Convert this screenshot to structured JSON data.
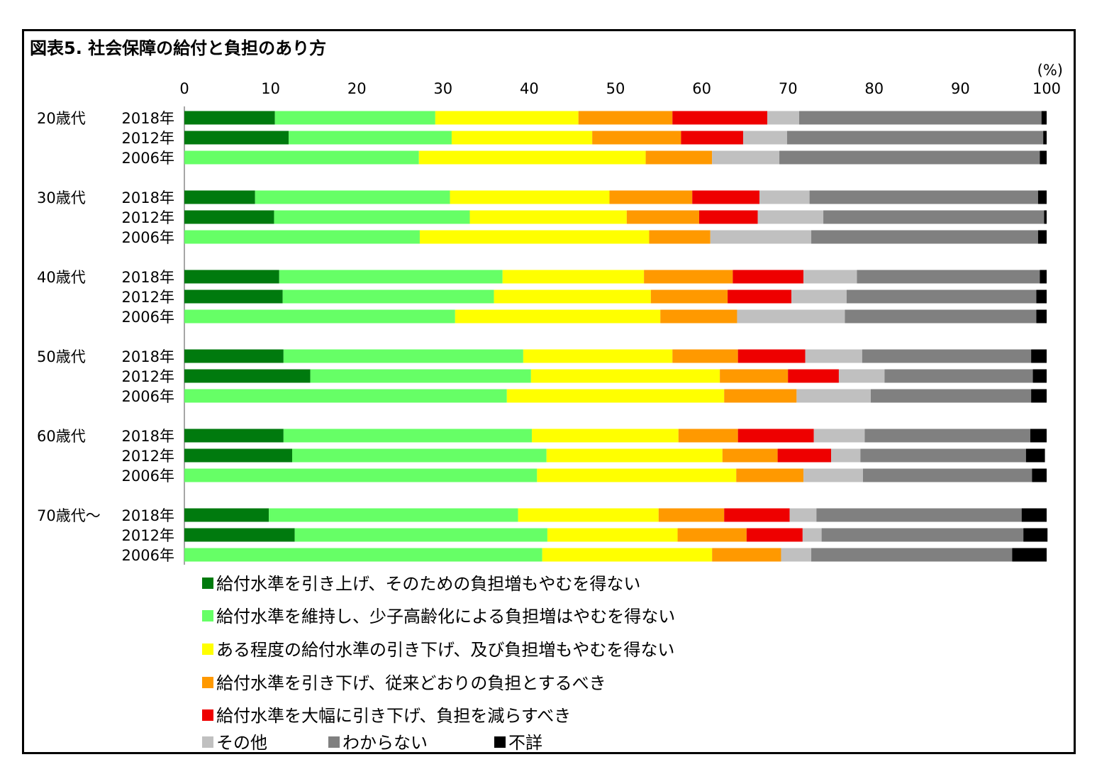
{
  "title": "図表5.  社会保障の給付と負担のあり方",
  "chart_data": {
    "type": "bar",
    "orientation": "horizontal",
    "stacked": true,
    "unit": "(%)",
    "xlim": [
      0,
      100
    ],
    "xticks": [
      0,
      10,
      20,
      30,
      40,
      50,
      60,
      70,
      80,
      90,
      100
    ],
    "grid": false,
    "legend_position": "bottom",
    "series": [
      {
        "name": "給付水準を引き上げ、そのための負担増もやむを得ない",
        "color": "#007a0e"
      },
      {
        "name": "給付水準を維持し、少子高齢化による負担増はやむを得ない",
        "color": "#66ff66"
      },
      {
        "name": "ある程度の給付水準の引き下げ、及び負担増もやむを得ない",
        "color": "#ffff00"
      },
      {
        "name": "給付水準を引き下げ、従来どおりの負担とするべき",
        "color": "#ff9900"
      },
      {
        "name": "給付水準を大幅に引き下げ、負担を減らすべき",
        "color": "#ee0000"
      },
      {
        "name": "その他",
        "color": "#c0c0c0"
      },
      {
        "name": "わからない",
        "color": "#808080"
      },
      {
        "name": "不詳",
        "color": "#000000"
      }
    ],
    "groups": [
      {
        "label": "20歳代",
        "rows": [
          {
            "year": "2018年",
            "values": [
              10.5,
              18.6,
              16.6,
              10.9,
              11.0,
              3.7,
              28.1,
              0.6
            ]
          },
          {
            "year": "2012年",
            "values": [
              12.1,
              18.9,
              16.3,
              10.3,
              7.2,
              5.1,
              29.7,
              0.4
            ]
          },
          {
            "year": "2006年",
            "values": [
              0,
              27.2,
              26.3,
              7.7,
              0,
              7.8,
              30.2,
              0.8
            ]
          }
        ]
      },
      {
        "label": "30歳代",
        "rows": [
          {
            "year": "2018年",
            "values": [
              8.2,
              22.6,
              18.5,
              9.6,
              7.8,
              5.8,
              26.5,
              1.0
            ]
          },
          {
            "year": "2012年",
            "values": [
              10.4,
              22.7,
              18.2,
              8.4,
              6.8,
              7.6,
              25.6,
              0.3
            ]
          },
          {
            "year": "2006年",
            "values": [
              0,
              27.3,
              26.6,
              7.1,
              0,
              11.7,
              26.3,
              1.0
            ]
          }
        ]
      },
      {
        "label": "40歳代",
        "rows": [
          {
            "year": "2018年",
            "values": [
              11.0,
              25.9,
              16.4,
              10.3,
              8.2,
              6.2,
              21.2,
              0.8
            ]
          },
          {
            "year": "2012年",
            "values": [
              11.4,
              24.5,
              18.2,
              8.9,
              7.4,
              6.4,
              22.0,
              1.2
            ]
          },
          {
            "year": "2006年",
            "values": [
              0,
              31.4,
              23.8,
              8.9,
              0,
              12.5,
              22.2,
              1.2
            ]
          }
        ]
      },
      {
        "label": "50歳代",
        "rows": [
          {
            "year": "2018年",
            "values": [
              11.5,
              27.8,
              17.3,
              7.6,
              7.8,
              6.6,
              19.6,
              1.8
            ]
          },
          {
            "year": "2012年",
            "values": [
              14.6,
              25.6,
              21.9,
              7.9,
              5.9,
              5.3,
              17.2,
              1.6
            ]
          },
          {
            "year": "2006年",
            "values": [
              0,
              37.4,
              25.2,
              8.4,
              0,
              8.6,
              18.6,
              1.8
            ]
          }
        ]
      },
      {
        "label": "60歳代",
        "rows": [
          {
            "year": "2018年",
            "values": [
              11.5,
              28.8,
              17.0,
              6.9,
              8.8,
              5.9,
              19.2,
              1.9
            ]
          },
          {
            "year": "2012年",
            "values": [
              12.5,
              29.5,
              20.4,
              6.4,
              6.2,
              3.4,
              19.2,
              2.2
            ]
          },
          {
            "year": "2006年",
            "values": [
              0,
              40.9,
              23.1,
              7.8,
              0,
              6.9,
              19.6,
              1.7
            ]
          }
        ]
      },
      {
        "label": "70歳代～",
        "rows": [
          {
            "year": "2018年",
            "values": [
              9.8,
              28.9,
              16.3,
              7.6,
              7.6,
              3.1,
              23.8,
              2.9
            ]
          },
          {
            "year": "2012年",
            "values": [
              12.8,
              29.3,
              15.1,
              8.0,
              6.5,
              2.2,
              23.4,
              2.8
            ]
          },
          {
            "year": "2006年",
            "values": [
              0,
              41.5,
              19.7,
              8.0,
              0,
              3.5,
              23.3,
              4.0
            ]
          }
        ]
      }
    ]
  }
}
